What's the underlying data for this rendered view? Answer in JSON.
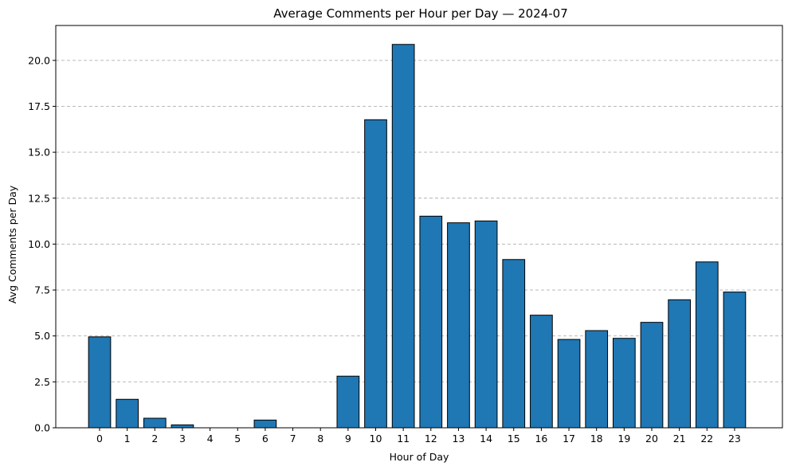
{
  "chart_data": {
    "type": "bar",
    "title": "Average Comments per Hour per Day — 2024-07",
    "xlabel": "Hour of Day",
    "ylabel": "Avg Comments per Day",
    "categories": [
      "0",
      "1",
      "2",
      "3",
      "4",
      "5",
      "6",
      "7",
      "8",
      "9",
      "10",
      "11",
      "12",
      "13",
      "14",
      "15",
      "16",
      "17",
      "18",
      "19",
      "20",
      "21",
      "22",
      "23"
    ],
    "values": [
      4.95,
      1.55,
      0.52,
      0.16,
      0.0,
      0.0,
      0.42,
      0.0,
      0.0,
      2.81,
      16.77,
      20.87,
      11.52,
      11.16,
      11.26,
      9.16,
      6.13,
      4.81,
      5.29,
      4.87,
      5.74,
      6.97,
      9.03,
      7.39
    ],
    "ylim": [
      0,
      21.9
    ],
    "yticks": [
      0.0,
      2.5,
      5.0,
      7.5,
      10.0,
      12.5,
      15.0,
      17.5,
      20.0
    ],
    "ytick_labels": [
      "0.0",
      "2.5",
      "5.0",
      "7.5",
      "10.0",
      "12.5",
      "15.0",
      "17.5",
      "20.0"
    ],
    "grid": "y-dashed",
    "bar_color": "#1f77b4",
    "edge_color": "#000000",
    "legend": "none"
  }
}
